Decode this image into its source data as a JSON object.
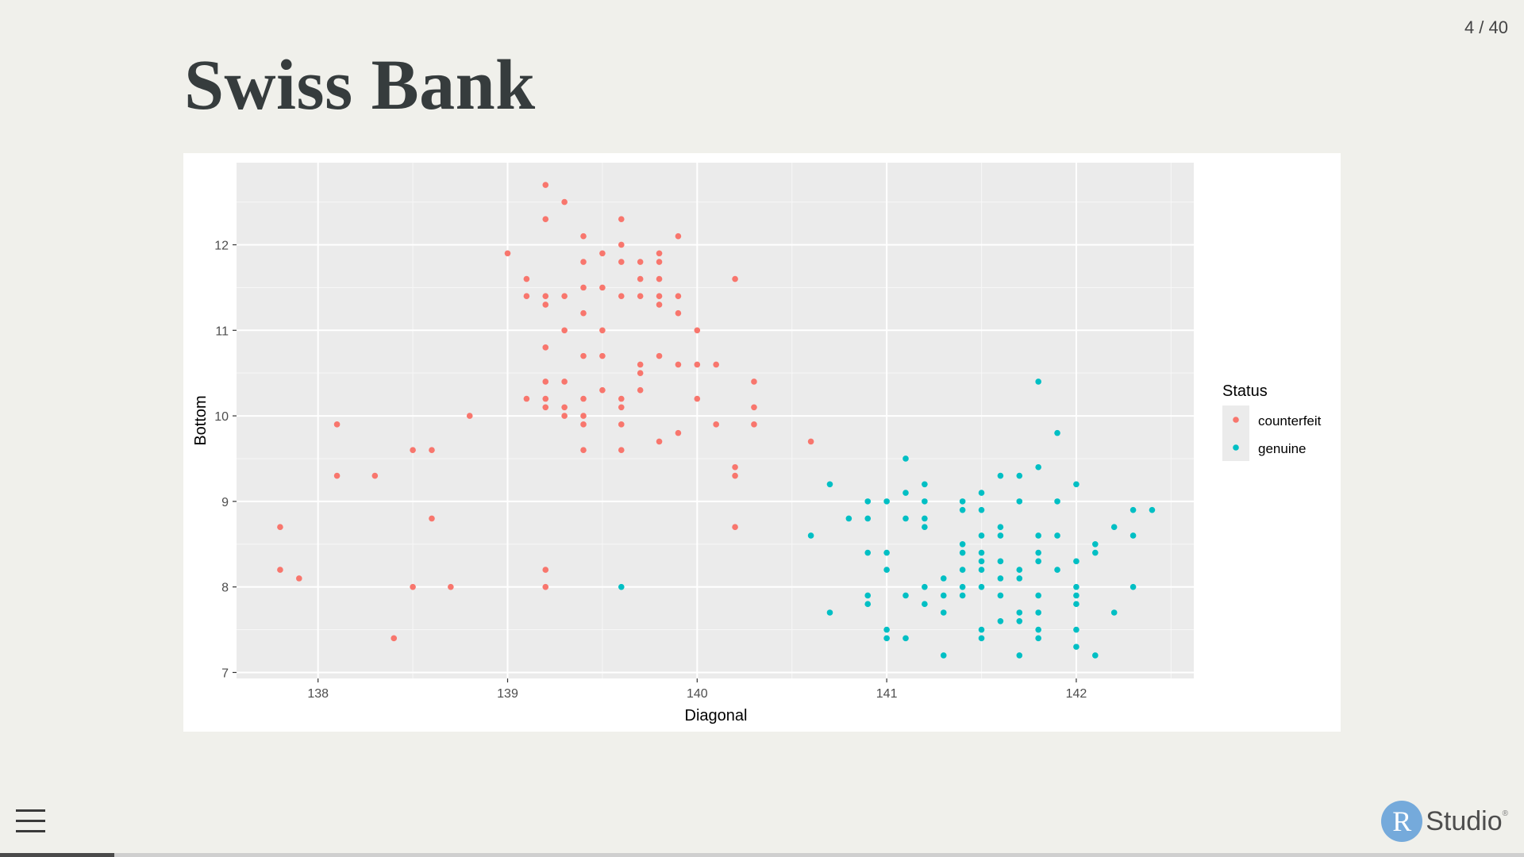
{
  "slide": {
    "counter": "4 / 40",
    "title": "Swiss Bank",
    "progress": 0.075
  },
  "logo": {
    "r": "R",
    "text": "Studio",
    "reg": "®"
  },
  "menu": {
    "icon": "hamburger-menu-icon"
  },
  "chart_data": {
    "type": "scatter",
    "xlabel": "Diagonal",
    "ylabel": "Bottom",
    "xlim": [
      137.57,
      142.62
    ],
    "ylim": [
      6.93,
      12.96
    ],
    "xticks": [
      138,
      139,
      140,
      141,
      142
    ],
    "yticks": [
      7,
      8,
      9,
      10,
      11,
      12
    ],
    "grid": true,
    "legend_title": "Status",
    "legend_position": "right",
    "series": [
      {
        "name": "counterfeit",
        "color": "#f8766d",
        "points": [
          [
            137.8,
            8.7
          ],
          [
            137.8,
            8.2
          ],
          [
            137.9,
            8.1
          ],
          [
            138.1,
            9.9
          ],
          [
            138.1,
            9.3
          ],
          [
            138.3,
            9.3
          ],
          [
            138.4,
            7.4
          ],
          [
            138.5,
            9.6
          ],
          [
            138.5,
            8.0
          ],
          [
            138.6,
            9.6
          ],
          [
            138.6,
            8.8
          ],
          [
            138.7,
            8.0
          ],
          [
            138.8,
            10.0
          ],
          [
            139.0,
            11.9
          ],
          [
            139.1,
            11.6
          ],
          [
            139.1,
            11.4
          ],
          [
            139.1,
            10.2
          ],
          [
            139.2,
            12.7
          ],
          [
            139.2,
            12.3
          ],
          [
            139.2,
            11.4
          ],
          [
            139.2,
            11.3
          ],
          [
            139.2,
            10.8
          ],
          [
            139.2,
            10.4
          ],
          [
            139.2,
            10.2
          ],
          [
            139.2,
            10.1
          ],
          [
            139.2,
            8.2
          ],
          [
            139.2,
            8.0
          ],
          [
            139.3,
            12.5
          ],
          [
            139.3,
            11.4
          ],
          [
            139.3,
            11.0
          ],
          [
            139.3,
            10.4
          ],
          [
            139.3,
            10.1
          ],
          [
            139.3,
            10.0
          ],
          [
            139.4,
            12.1
          ],
          [
            139.4,
            11.8
          ],
          [
            139.4,
            11.5
          ],
          [
            139.4,
            11.2
          ],
          [
            139.4,
            10.7
          ],
          [
            139.4,
            10.2
          ],
          [
            139.4,
            10.0
          ],
          [
            139.4,
            9.9
          ],
          [
            139.4,
            9.6
          ],
          [
            139.5,
            11.9
          ],
          [
            139.5,
            11.5
          ],
          [
            139.5,
            11.0
          ],
          [
            139.5,
            10.7
          ],
          [
            139.5,
            10.3
          ],
          [
            139.6,
            12.3
          ],
          [
            139.6,
            12.0
          ],
          [
            139.6,
            11.8
          ],
          [
            139.6,
            11.4
          ],
          [
            139.6,
            10.2
          ],
          [
            139.6,
            10.1
          ],
          [
            139.6,
            9.9
          ],
          [
            139.6,
            9.6
          ],
          [
            139.7,
            11.8
          ],
          [
            139.7,
            11.6
          ],
          [
            139.7,
            11.4
          ],
          [
            139.7,
            10.6
          ],
          [
            139.7,
            10.5
          ],
          [
            139.7,
            10.3
          ],
          [
            139.8,
            11.9
          ],
          [
            139.8,
            11.8
          ],
          [
            139.8,
            11.6
          ],
          [
            139.8,
            11.4
          ],
          [
            139.8,
            11.3
          ],
          [
            139.8,
            10.7
          ],
          [
            139.8,
            9.7
          ],
          [
            139.9,
            12.1
          ],
          [
            139.9,
            11.4
          ],
          [
            139.9,
            11.2
          ],
          [
            139.9,
            10.6
          ],
          [
            139.9,
            9.8
          ],
          [
            140.0,
            11.0
          ],
          [
            140.0,
            10.6
          ],
          [
            140.0,
            10.2
          ],
          [
            140.1,
            10.6
          ],
          [
            140.1,
            9.9
          ],
          [
            140.2,
            11.6
          ],
          [
            140.2,
            9.4
          ],
          [
            140.2,
            9.3
          ],
          [
            140.2,
            8.7
          ],
          [
            140.3,
            10.4
          ],
          [
            140.3,
            10.1
          ],
          [
            140.3,
            9.9
          ],
          [
            140.6,
            9.7
          ]
        ]
      },
      {
        "name": "genuine",
        "color": "#00bfc4",
        "points": [
          [
            139.6,
            8.0
          ],
          [
            140.6,
            8.6
          ],
          [
            140.7,
            9.2
          ],
          [
            140.7,
            7.7
          ],
          [
            140.8,
            8.8
          ],
          [
            140.9,
            9.0
          ],
          [
            140.9,
            8.8
          ],
          [
            140.9,
            8.4
          ],
          [
            140.9,
            7.9
          ],
          [
            140.9,
            7.8
          ],
          [
            141.0,
            9.0
          ],
          [
            141.0,
            8.4
          ],
          [
            141.0,
            8.2
          ],
          [
            141.0,
            7.5
          ],
          [
            141.0,
            7.4
          ],
          [
            141.1,
            9.5
          ],
          [
            141.1,
            9.1
          ],
          [
            141.1,
            8.8
          ],
          [
            141.1,
            7.9
          ],
          [
            141.1,
            7.4
          ],
          [
            141.2,
            9.2
          ],
          [
            141.2,
            9.0
          ],
          [
            141.2,
            8.8
          ],
          [
            141.2,
            8.7
          ],
          [
            141.2,
            8.0
          ],
          [
            141.2,
            7.8
          ],
          [
            141.3,
            8.1
          ],
          [
            141.3,
            7.9
          ],
          [
            141.3,
            7.7
          ],
          [
            141.3,
            7.2
          ],
          [
            141.4,
            9.0
          ],
          [
            141.4,
            8.9
          ],
          [
            141.4,
            8.5
          ],
          [
            141.4,
            8.4
          ],
          [
            141.4,
            8.2
          ],
          [
            141.4,
            8.0
          ],
          [
            141.4,
            7.9
          ],
          [
            141.5,
            9.1
          ],
          [
            141.5,
            8.9
          ],
          [
            141.5,
            8.6
          ],
          [
            141.5,
            8.4
          ],
          [
            141.5,
            8.3
          ],
          [
            141.5,
            8.2
          ],
          [
            141.5,
            8.0
          ],
          [
            141.5,
            7.5
          ],
          [
            141.5,
            7.4
          ],
          [
            141.6,
            9.3
          ],
          [
            141.6,
            8.7
          ],
          [
            141.6,
            8.6
          ],
          [
            141.6,
            8.3
          ],
          [
            141.6,
            8.1
          ],
          [
            141.6,
            7.9
          ],
          [
            141.6,
            7.6
          ],
          [
            141.7,
            9.3
          ],
          [
            141.7,
            9.0
          ],
          [
            141.7,
            8.2
          ],
          [
            141.7,
            8.1
          ],
          [
            141.7,
            7.7
          ],
          [
            141.7,
            7.6
          ],
          [
            141.7,
            7.2
          ],
          [
            141.8,
            10.4
          ],
          [
            141.8,
            9.4
          ],
          [
            141.8,
            8.6
          ],
          [
            141.8,
            8.4
          ],
          [
            141.8,
            8.3
          ],
          [
            141.8,
            7.9
          ],
          [
            141.8,
            7.7
          ],
          [
            141.8,
            7.5
          ],
          [
            141.8,
            7.4
          ],
          [
            141.9,
            9.8
          ],
          [
            141.9,
            9.0
          ],
          [
            141.9,
            8.6
          ],
          [
            141.9,
            8.2
          ],
          [
            142.0,
            9.2
          ],
          [
            142.0,
            8.3
          ],
          [
            142.0,
            8.0
          ],
          [
            142.0,
            7.9
          ],
          [
            142.0,
            7.8
          ],
          [
            142.0,
            7.5
          ],
          [
            142.0,
            7.3
          ],
          [
            142.1,
            8.5
          ],
          [
            142.1,
            8.4
          ],
          [
            142.1,
            7.2
          ],
          [
            142.2,
            8.7
          ],
          [
            142.2,
            7.7
          ],
          [
            142.3,
            8.9
          ],
          [
            142.3,
            8.6
          ],
          [
            142.3,
            8.0
          ],
          [
            142.4,
            8.9
          ]
        ]
      }
    ]
  }
}
